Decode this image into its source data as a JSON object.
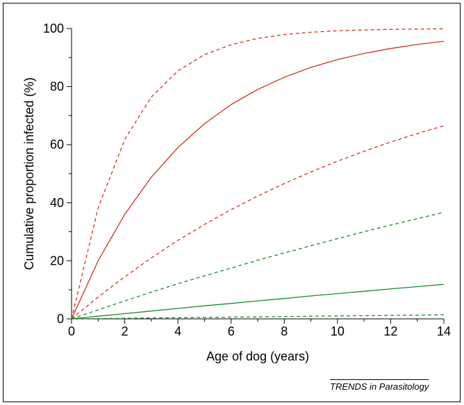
{
  "source_credit": "TRENDS in Parasitology",
  "chart_data": {
    "type": "line",
    "title": "",
    "xlabel": "Age of dog (years)",
    "ylabel": "Cumulative proportion infected (%)",
    "xlim": [
      0,
      14
    ],
    "ylim": [
      0,
      100
    ],
    "x_ticks": [
      0,
      2,
      4,
      6,
      8,
      10,
      12,
      14
    ],
    "y_ticks": [
      0,
      20,
      40,
      60,
      80,
      100
    ],
    "x_tick_labels": [
      "0",
      "2",
      "4",
      "6",
      "8",
      "10",
      "12",
      "14"
    ],
    "y_tick_labels": [
      "0",
      "20",
      "40",
      "60",
      "80",
      "100"
    ],
    "grid": false,
    "legend": "none",
    "x": [
      0,
      1,
      2,
      3,
      4,
      5,
      6,
      7,
      8,
      9,
      10,
      11,
      12,
      13,
      14
    ],
    "series": [
      {
        "color": "#d03020",
        "style": "solid",
        "values": [
          0,
          20.0,
          36.0,
          48.8,
          59.0,
          67.2,
          73.8,
          79.0,
          83.2,
          86.6,
          89.3,
          91.4,
          93.1,
          94.5,
          95.6
        ]
      },
      {
        "color": "#d03020",
        "style": "dashed",
        "values": [
          0,
          38.2,
          61.8,
          76.4,
          85.4,
          91.0,
          94.4,
          96.6,
          97.9,
          98.7,
          99.2,
          99.5,
          99.7,
          99.8,
          99.9
        ]
      },
      {
        "color": "#d03020",
        "style": "dashed",
        "values": [
          0,
          7.5,
          14.5,
          21.0,
          27.0,
          32.5,
          37.6,
          42.3,
          46.6,
          50.6,
          54.3,
          57.7,
          60.9,
          63.8,
          66.5
        ]
      },
      {
        "color": "#1a8a2a",
        "style": "dashed",
        "values": [
          0,
          3.1,
          6.2,
          9.2,
          12.1,
          14.8,
          17.5,
          20.2,
          22.7,
          25.2,
          27.6,
          30.0,
          32.3,
          34.5,
          36.7
        ]
      },
      {
        "color": "#1a8a2a",
        "style": "solid",
        "values": [
          0,
          0.9,
          1.8,
          2.7,
          3.6,
          4.5,
          5.3,
          6.2,
          7.0,
          7.9,
          8.7,
          9.5,
          10.3,
          11.1,
          11.9
        ]
      },
      {
        "color": "#1a8a2a",
        "style": "dashed",
        "values": [
          0,
          0.1,
          0.2,
          0.3,
          0.4,
          0.5,
          0.6,
          0.7,
          0.8,
          0.9,
          1.0,
          1.1,
          1.2,
          1.3,
          1.4
        ]
      }
    ]
  }
}
